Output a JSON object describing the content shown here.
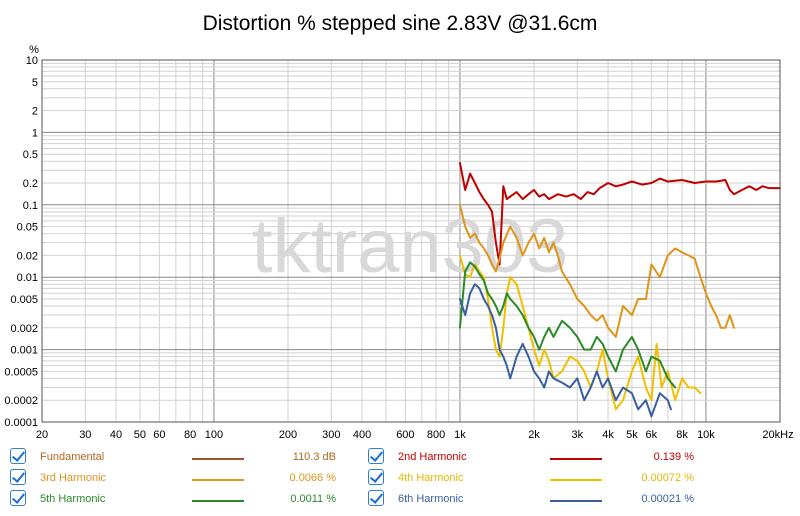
{
  "chart_data": {
    "type": "line",
    "title": "Distortion % stepped sine 2.83V @31.6cm",
    "ylabel": "%",
    "xlabel": "",
    "xscale": "log",
    "yscale": "log",
    "xlim": [
      20,
      20000
    ],
    "ylim": [
      0.0001,
      10
    ],
    "grid": true,
    "watermark": "tktran303",
    "x_ticks": [
      {
        "v": 20,
        "label": "20"
      },
      {
        "v": 30,
        "label": "30"
      },
      {
        "v": 40,
        "label": "40"
      },
      {
        "v": 50,
        "label": "50"
      },
      {
        "v": 60,
        "label": "60"
      },
      {
        "v": 80,
        "label": "80"
      },
      {
        "v": 100,
        "label": "100"
      },
      {
        "v": 200,
        "label": "200"
      },
      {
        "v": 300,
        "label": "300"
      },
      {
        "v": 400,
        "label": "400"
      },
      {
        "v": 600,
        "label": "600"
      },
      {
        "v": 800,
        "label": "800"
      },
      {
        "v": 1000,
        "label": "1k"
      },
      {
        "v": 2000,
        "label": "2k"
      },
      {
        "v": 3000,
        "label": "3k"
      },
      {
        "v": 4000,
        "label": "4k"
      },
      {
        "v": 5000,
        "label": "5k"
      },
      {
        "v": 6000,
        "label": "6k"
      },
      {
        "v": 8000,
        "label": "8k"
      },
      {
        "v": 10000,
        "label": "10k"
      },
      {
        "v": 20000,
        "label": "20kHz"
      }
    ],
    "y_ticks": [
      {
        "v": 10,
        "label": "10"
      },
      {
        "v": 5,
        "label": "5"
      },
      {
        "v": 2,
        "label": "2"
      },
      {
        "v": 1,
        "label": "1"
      },
      {
        "v": 0.5,
        "label": "0.5"
      },
      {
        "v": 0.2,
        "label": "0.2"
      },
      {
        "v": 0.1,
        "label": "0.1"
      },
      {
        "v": 0.05,
        "label": "0.05"
      },
      {
        "v": 0.02,
        "label": "0.02"
      },
      {
        "v": 0.01,
        "label": "0.01"
      },
      {
        "v": 0.005,
        "label": "0.005"
      },
      {
        "v": 0.002,
        "label": "0.002"
      },
      {
        "v": 0.001,
        "label": "0.001"
      },
      {
        "v": 0.0005,
        "label": "0.0005"
      },
      {
        "v": 0.0002,
        "label": "0.0002"
      },
      {
        "v": 0.0001,
        "label": "0.0001"
      }
    ],
    "series": [
      {
        "name": "2nd Harmonic",
        "color": "#c00000",
        "x": [
          1000,
          1050,
          1100,
          1150,
          1200,
          1250,
          1300,
          1350,
          1400,
          1450,
          1500,
          1550,
          1600,
          1700,
          1800,
          1900,
          2000,
          2100,
          2200,
          2300,
          2400,
          2500,
          2700,
          2900,
          3100,
          3300,
          3500,
          3700,
          4000,
          4300,
          4600,
          5000,
          5500,
          6000,
          6500,
          7000,
          8000,
          9000,
          10000,
          11000,
          12000,
          12500,
          13000,
          14000,
          15000,
          16000,
          17000,
          18000,
          20000
        ],
        "y": [
          0.38,
          0.16,
          0.27,
          0.2,
          0.15,
          0.12,
          0.1,
          0.08,
          0.03,
          0.015,
          0.18,
          0.12,
          0.13,
          0.15,
          0.12,
          0.14,
          0.16,
          0.13,
          0.14,
          0.12,
          0.13,
          0.14,
          0.13,
          0.14,
          0.12,
          0.15,
          0.14,
          0.17,
          0.2,
          0.18,
          0.19,
          0.21,
          0.19,
          0.2,
          0.23,
          0.21,
          0.22,
          0.2,
          0.21,
          0.21,
          0.22,
          0.16,
          0.14,
          0.16,
          0.18,
          0.16,
          0.18,
          0.17,
          0.17
        ]
      },
      {
        "name": "3rd Harmonic",
        "color": "#e0941a",
        "x": [
          1000,
          1050,
          1100,
          1150,
          1200,
          1250,
          1300,
          1350,
          1400,
          1450,
          1500,
          1600,
          1700,
          1800,
          1900,
          2000,
          2100,
          2200,
          2300,
          2400,
          2500,
          2600,
          2800,
          3000,
          3200,
          3400,
          3600,
          3800,
          4000,
          4300,
          4600,
          5000,
          5300,
          5700,
          6000,
          6500,
          7000,
          7500,
          8000,
          8500,
          9000,
          9500,
          10000,
          10500,
          11000,
          11500,
          12000,
          12500,
          13000
        ],
        "y": [
          0.1,
          0.05,
          0.035,
          0.04,
          0.03,
          0.025,
          0.02,
          0.015,
          0.012,
          0.018,
          0.03,
          0.05,
          0.035,
          0.02,
          0.03,
          0.04,
          0.025,
          0.035,
          0.022,
          0.03,
          0.02,
          0.012,
          0.008,
          0.005,
          0.004,
          0.003,
          0.0025,
          0.003,
          0.002,
          0.0015,
          0.004,
          0.003,
          0.005,
          0.005,
          0.015,
          0.01,
          0.02,
          0.025,
          0.022,
          0.02,
          0.018,
          0.01,
          0.006,
          0.004,
          0.003,
          0.002,
          0.002,
          0.003,
          0.002
        ]
      },
      {
        "name": "4th Harmonic",
        "color": "#f0c000",
        "x": [
          1000,
          1050,
          1100,
          1150,
          1200,
          1250,
          1300,
          1350,
          1400,
          1450,
          1500,
          1550,
          1600,
          1700,
          1800,
          1900,
          2000,
          2100,
          2200,
          2300,
          2400,
          2600,
          2800,
          3000,
          3200,
          3400,
          3600,
          3800,
          4000,
          4300,
          4600,
          5000,
          5300,
          5700,
          6000,
          6300,
          6600,
          7000,
          7500,
          8000,
          8500,
          9000,
          9500
        ],
        "y": [
          0.02,
          0.011,
          0.01,
          0.015,
          0.012,
          0.01,
          0.005,
          0.002,
          0.001,
          0.0008,
          0.002,
          0.006,
          0.01,
          0.008,
          0.004,
          0.002,
          0.001,
          0.0006,
          0.001,
          0.0007,
          0.0004,
          0.0005,
          0.0008,
          0.0007,
          0.0005,
          0.0003,
          0.0005,
          0.001,
          0.0004,
          0.00015,
          0.0002,
          0.0005,
          0.0008,
          0.0003,
          0.0002,
          0.0012,
          0.0003,
          0.0005,
          0.0002,
          0.0004,
          0.0003,
          0.0003,
          0.00025
        ]
      },
      {
        "name": "5th Harmonic",
        "color": "#2a8a2a",
        "x": [
          1000,
          1050,
          1100,
          1150,
          1200,
          1250,
          1300,
          1350,
          1400,
          1450,
          1500,
          1550,
          1600,
          1700,
          1800,
          1900,
          2000,
          2100,
          2200,
          2300,
          2400,
          2600,
          2800,
          3000,
          3200,
          3400,
          3600,
          3800,
          4000,
          4300,
          4600,
          5000,
          5300,
          5700,
          6000,
          6500,
          7000,
          7500
        ],
        "y": [
          0.002,
          0.012,
          0.016,
          0.014,
          0.011,
          0.009,
          0.006,
          0.005,
          0.004,
          0.003,
          0.004,
          0.006,
          0.005,
          0.004,
          0.003,
          0.002,
          0.0015,
          0.001,
          0.0015,
          0.002,
          0.0015,
          0.0025,
          0.002,
          0.0015,
          0.001,
          0.001,
          0.0015,
          0.0012,
          0.0008,
          0.0005,
          0.001,
          0.0015,
          0.001,
          0.0005,
          0.0008,
          0.0007,
          0.0004,
          0.0003
        ]
      },
      {
        "name": "6th Harmonic",
        "color": "#3a5fa0",
        "x": [
          1000,
          1050,
          1100,
          1150,
          1200,
          1250,
          1300,
          1350,
          1400,
          1450,
          1500,
          1550,
          1600,
          1700,
          1800,
          1900,
          2000,
          2100,
          2200,
          2300,
          2400,
          2600,
          2800,
          3000,
          3200,
          3400,
          3600,
          3800,
          4000,
          4300,
          4600,
          5000,
          5300,
          5700,
          6000,
          6500,
          7000,
          7200
        ],
        "y": [
          0.005,
          0.003,
          0.006,
          0.008,
          0.007,
          0.005,
          0.004,
          0.003,
          0.002,
          0.001,
          0.0008,
          0.0006,
          0.0004,
          0.0008,
          0.0012,
          0.0008,
          0.0005,
          0.0004,
          0.0003,
          0.0005,
          0.0004,
          0.00035,
          0.0003,
          0.0004,
          0.0002,
          0.0003,
          0.0005,
          0.0003,
          0.0004,
          0.0002,
          0.0003,
          0.00025,
          0.00015,
          0.0002,
          0.00012,
          0.00025,
          0.0002,
          0.00015
        ]
      }
    ]
  },
  "legend": {
    "items": [
      {
        "name": "Fundamental",
        "value": "110.3 dB",
        "color": "#a0522d",
        "label_color": "#b5651d"
      },
      {
        "name": "2nd Harmonic",
        "value": "0.139 %",
        "color": "#c00000",
        "label_color": "#c00000"
      },
      {
        "name": "3rd Harmonic",
        "value": "0.0066 %",
        "color": "#e0941a",
        "label_color": "#e0941a"
      },
      {
        "name": "4th Harmonic",
        "value": "0.00072 %",
        "color": "#f0c000",
        "label_color": "#e6b800"
      },
      {
        "name": "5th Harmonic",
        "value": "0.0011 %",
        "color": "#2a8a2a",
        "label_color": "#2a8a2a"
      },
      {
        "name": "6th Harmonic",
        "value": "0.00021 %",
        "color": "#3a5fa0",
        "label_color": "#3a5fa0"
      }
    ]
  }
}
